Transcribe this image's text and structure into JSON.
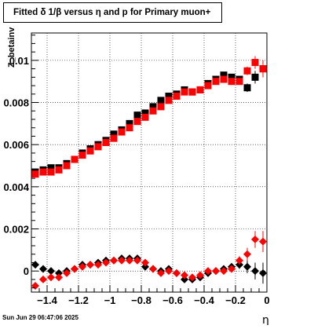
{
  "title": "Fitted δ 1/β  versus η and p for Primary muon+",
  "timestamp": "Sun Jun 29 06:47:06 2025",
  "chart_data": {
    "type": "scatter",
    "title": "Fitted δ 1/β  versus η and p for Primary muon+",
    "xlabel": "η",
    "ylabel": "Z_betainv",
    "xlim": [
      -1.5,
      0
    ],
    "ylim": [
      -0.001,
      0.0113
    ],
    "x_ticks": [
      "−1.4",
      "−1.2",
      "−1",
      "−0.8",
      "−0.6",
      "−0.4",
      "−0.2",
      "0"
    ],
    "y_ticks": [
      "0",
      "0.002",
      "0.004",
      "0.006",
      "0.008",
      "0.01"
    ],
    "grid": true,
    "colors": {
      "black": "#000000",
      "red": "#ff0000"
    },
    "x": [
      -1.475,
      -1.425,
      -1.375,
      -1.325,
      -1.275,
      -1.225,
      -1.175,
      -1.125,
      -1.075,
      -1.025,
      -0.975,
      -0.925,
      -0.875,
      -0.825,
      -0.775,
      -0.725,
      -0.675,
      -0.625,
      -0.575,
      -0.525,
      -0.475,
      -0.425,
      -0.375,
      -0.325,
      -0.275,
      -0.225,
      -0.175,
      -0.125,
      -0.075,
      -0.025
    ],
    "series": [
      {
        "marker": "square",
        "color": "#000000",
        "values": [
          0.0047,
          0.0048,
          0.0049,
          0.0049,
          0.0051,
          0.0053,
          0.0056,
          0.0058,
          0.006,
          0.0062,
          0.0065,
          0.0067,
          0.007,
          0.0074,
          0.0075,
          0.0078,
          0.0081,
          0.0083,
          0.0084,
          0.0086,
          0.0085,
          0.0086,
          0.0089,
          0.0091,
          0.0093,
          0.0092,
          0.0091,
          0.0087,
          0.0092,
          0.0096
        ],
        "errors": [
          8e-05,
          8e-05,
          8e-05,
          8e-05,
          8e-05,
          8e-05,
          8e-05,
          8e-05,
          8e-05,
          8e-05,
          8e-05,
          8e-05,
          8e-05,
          8e-05,
          8e-05,
          8e-05,
          8e-05,
          8e-05,
          8e-05,
          8e-05,
          8e-05,
          0.0001,
          0.0001,
          0.0001,
          0.00012,
          0.00012,
          0.00015,
          0.0002,
          0.0003,
          0.0004
        ]
      },
      {
        "marker": "square",
        "color": "#ff0000",
        "values": [
          0.0046,
          0.0047,
          0.0047,
          0.0048,
          0.005,
          0.0053,
          0.0055,
          0.0057,
          0.0059,
          0.0061,
          0.0063,
          0.0066,
          0.0068,
          0.0071,
          0.0073,
          0.0076,
          0.0078,
          0.0081,
          0.0083,
          0.0085,
          0.0085,
          0.0086,
          0.0088,
          0.009,
          0.0091,
          0.009,
          0.009,
          0.0095,
          0.0099,
          0.0096
        ],
        "errors": [
          8e-05,
          8e-05,
          8e-05,
          8e-05,
          8e-05,
          8e-05,
          8e-05,
          8e-05,
          8e-05,
          8e-05,
          8e-05,
          8e-05,
          8e-05,
          8e-05,
          8e-05,
          8e-05,
          8e-05,
          8e-05,
          8e-05,
          8e-05,
          8e-05,
          0.0001,
          0.0001,
          0.0001,
          0.00012,
          0.00012,
          0.00015,
          0.0002,
          0.0003,
          0.0004
        ]
      },
      {
        "marker": "diamond",
        "color": "#000000",
        "values": [
          0.0003,
          0.0001,
          0,
          -0.0001,
          0,
          0.0001,
          0.0003,
          0.0003,
          0.0004,
          0.0005,
          0.0005,
          0.0006,
          0.0006,
          0.0006,
          0.0002,
          0.0001,
          0,
          0.0001,
          -0.0001,
          -0.0004,
          -0.0004,
          -0.0003,
          -0.0001,
          0,
          0.0001,
          0.0002,
          0.0003,
          0.0002,
          0,
          -0.0001
        ],
        "errors": [
          0.0001,
          0.0001,
          0.0001,
          0.0001,
          0.0001,
          0.0001,
          0.0001,
          0.0001,
          0.0001,
          0.0001,
          0.0001,
          0.0001,
          0.0001,
          0.0001,
          0.0001,
          0.0001,
          0.0001,
          0.0001,
          0.0001,
          0.0001,
          0.0001,
          0.00012,
          0.00012,
          0.00012,
          0.00015,
          0.00015,
          0.0002,
          0.0003,
          0.0004,
          0.0005
        ]
      },
      {
        "marker": "diamond",
        "color": "#ff0000",
        "values": [
          -0.0007,
          -0.0004,
          -0.0003,
          -0.0003,
          -0.0001,
          0.0001,
          0.0002,
          0.0003,
          0.0003,
          0.0004,
          0.0005,
          0.0005,
          0.0005,
          0.0005,
          0.0004,
          0.0001,
          -0.0001,
          0,
          -0.0001,
          -0.0002,
          -0.0003,
          -0.0002,
          0,
          0,
          0,
          0.0001,
          0.0005,
          0.0008,
          0.0015,
          0.0014
        ],
        "errors": [
          0.0001,
          0.0001,
          0.0001,
          0.0001,
          0.0001,
          0.0001,
          0.0001,
          0.0001,
          0.0001,
          0.0001,
          0.0001,
          0.0001,
          0.0001,
          0.0001,
          0.0001,
          0.0001,
          0.0001,
          0.0001,
          0.0001,
          0.0001,
          0.0001,
          0.00012,
          0.00012,
          0.00012,
          0.00015,
          0.00015,
          0.0002,
          0.0003,
          0.0004,
          0.0005
        ]
      }
    ]
  }
}
